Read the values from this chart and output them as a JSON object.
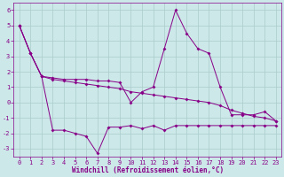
{
  "xlabel": "Windchill (Refroidissement éolien,°C)",
  "background_color": "#cce8e8",
  "grid_color": "#aacccc",
  "line_color": "#880088",
  "xlim": [
    -0.5,
    23.5
  ],
  "ylim": [
    -3.5,
    6.5
  ],
  "yticks": [
    -3,
    -2,
    -1,
    0,
    1,
    2,
    3,
    4,
    5,
    6
  ],
  "xticks": [
    0,
    1,
    2,
    3,
    4,
    5,
    6,
    7,
    8,
    9,
    10,
    11,
    12,
    13,
    14,
    15,
    16,
    17,
    18,
    19,
    20,
    21,
    22,
    23
  ],
  "line1_x": [
    0,
    1,
    2,
    3,
    4,
    5,
    6,
    7,
    8,
    9,
    10,
    11,
    12,
    13,
    14,
    15,
    16,
    17,
    18,
    19,
    20,
    21,
    22,
    23
  ],
  "line1_y": [
    5.0,
    3.2,
    1.7,
    1.6,
    1.5,
    1.5,
    1.5,
    1.4,
    1.4,
    1.3,
    0.0,
    0.7,
    1.0,
    3.5,
    6.0,
    4.5,
    3.5,
    3.2,
    1.0,
    -0.8,
    -0.8,
    -0.8,
    -0.6,
    -1.2
  ],
  "line2_x": [
    0,
    1,
    2,
    3,
    4,
    5,
    6,
    7,
    8,
    9,
    10,
    11,
    12,
    13,
    14,
    15,
    16,
    17,
    18,
    19,
    20,
    21,
    22,
    23
  ],
  "line2_y": [
    5.0,
    3.2,
    1.7,
    1.5,
    1.4,
    1.3,
    1.2,
    1.1,
    1.0,
    0.9,
    0.7,
    0.6,
    0.5,
    0.4,
    0.3,
    0.2,
    0.1,
    0.0,
    -0.2,
    -0.5,
    -0.7,
    -0.9,
    -1.0,
    -1.2
  ],
  "line3_x": [
    0,
    1,
    2,
    3,
    4,
    5,
    6,
    7,
    8,
    9,
    10,
    11,
    12,
    13,
    14,
    15,
    16,
    17,
    18,
    19,
    20,
    21,
    22,
    23
  ],
  "line3_y": [
    5.0,
    3.2,
    1.7,
    -1.8,
    -1.8,
    -2.0,
    -2.2,
    -3.3,
    -1.6,
    -1.6,
    -1.5,
    -1.7,
    -1.5,
    -1.8,
    -1.5,
    -1.5,
    -1.5,
    -1.5,
    -1.5,
    -1.5,
    -1.5,
    -1.5,
    -1.5,
    -1.5
  ],
  "tick_fontsize": 5.0,
  "label_fontsize": 5.5,
  "markersize": 2.0,
  "linewidth": 0.7
}
